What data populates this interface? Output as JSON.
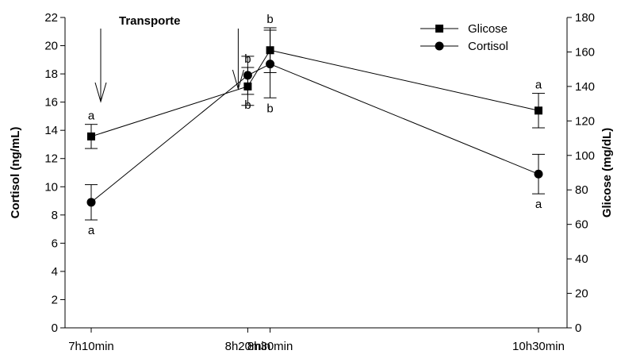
{
  "chart_data": {
    "type": "line",
    "x": [
      "7h10min",
      "8h20min",
      "8h30min",
      "10h30min"
    ],
    "x_minutes": [
      0,
      70,
      80,
      200
    ],
    "y_left": {
      "label": "Cortisol (ng/mL)",
      "lim": [
        0,
        22
      ],
      "ticks": [
        "0",
        "2",
        "4",
        "6",
        "8",
        "10",
        "12",
        "14",
        "16",
        "18",
        "20",
        "22"
      ]
    },
    "y_right": {
      "label": "Glicose (mg/dL)",
      "lim": [
        0,
        180
      ],
      "ticks": [
        "0",
        "20",
        "40",
        "60",
        "80",
        "100",
        "120",
        "140",
        "160",
        "180"
      ]
    },
    "series": [
      {
        "name": "Glicose",
        "axis": "right",
        "marker": "square",
        "x": [
          "7h10min",
          "8h20min",
          "8h30min",
          "10h30min"
        ],
        "values": [
          111,
          140,
          161,
          126
        ],
        "errors": [
          7,
          11,
          13,
          10
        ],
        "sig": [
          "a",
          "b",
          "b",
          "a"
        ]
      },
      {
        "name": "Cortisol",
        "axis": "left",
        "marker": "circle",
        "x": [
          "7h10min",
          "8h20min",
          "8h30min",
          "10h30min"
        ],
        "values": [
          8.9,
          17.9,
          18.7,
          10.9
        ],
        "errors": [
          1.25,
          1.35,
          2.4,
          1.4
        ],
        "sig": [
          "a",
          "b",
          "b",
          "a"
        ]
      }
    ],
    "annotations": [
      {
        "text": "Transporte",
        "arrows_at": [
          "7h10min",
          "8h20min"
        ]
      }
    ],
    "legend": {
      "position": "top-right"
    },
    "grid": false
  }
}
